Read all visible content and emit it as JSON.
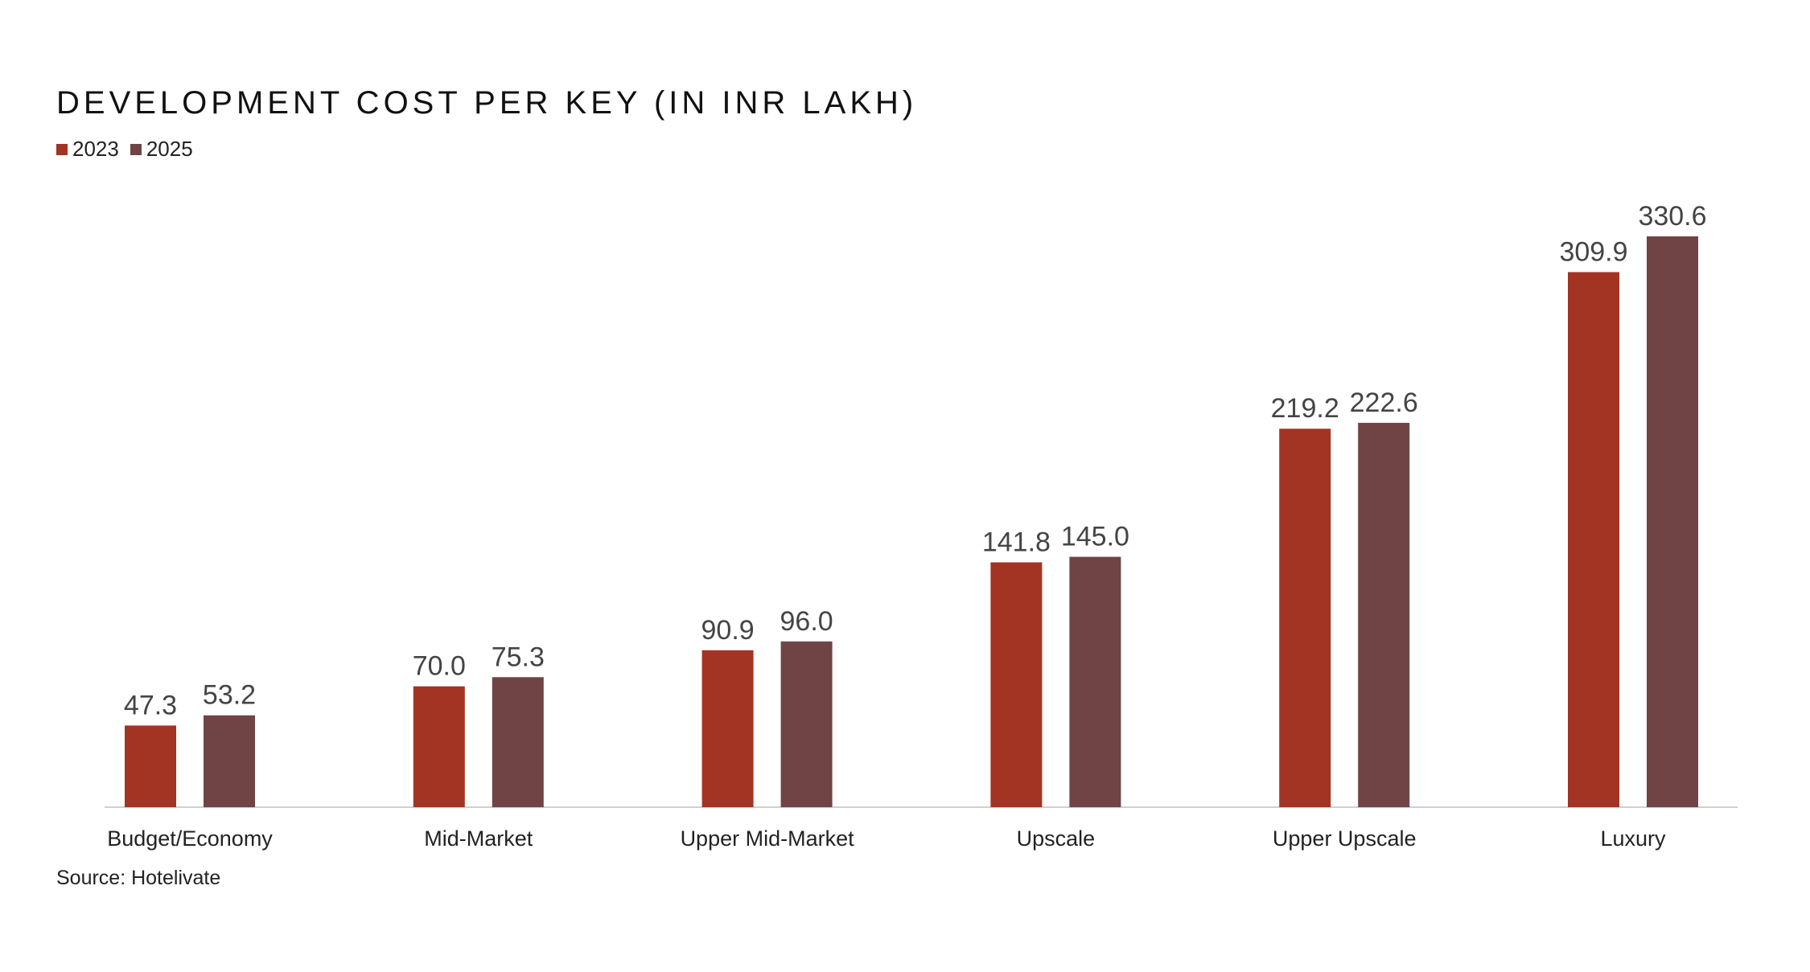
{
  "chart_data": {
    "type": "bar",
    "title": "DEVELOPMENT COST PER KEY (IN INR LAKH)",
    "categories": [
      "Budget/Economy",
      "Mid-Market",
      "Upper Mid-Market",
      "Upscale",
      "Upper Upscale",
      "Luxury"
    ],
    "series": [
      {
        "name": "2023",
        "color": "#A33423",
        "values": [
          47.3,
          70.0,
          90.9,
          141.8,
          219.2,
          309.9
        ],
        "labels": [
          "47.3",
          "70.0",
          "90.9",
          "141.8",
          "219.2",
          "309.9"
        ]
      },
      {
        "name": "2025",
        "color": "#704444",
        "values": [
          53.2,
          75.3,
          96.0,
          145.0,
          222.6,
          330.6
        ],
        "labels": [
          "53.2",
          "75.3",
          "96.0",
          "145.0",
          "222.6",
          "330.6"
        ]
      }
    ],
    "xlabel": "",
    "ylabel": "",
    "ylim": [
      0,
      330.6
    ],
    "grid": false,
    "legend": "top-left",
    "source": "Source: Hotelivate"
  }
}
